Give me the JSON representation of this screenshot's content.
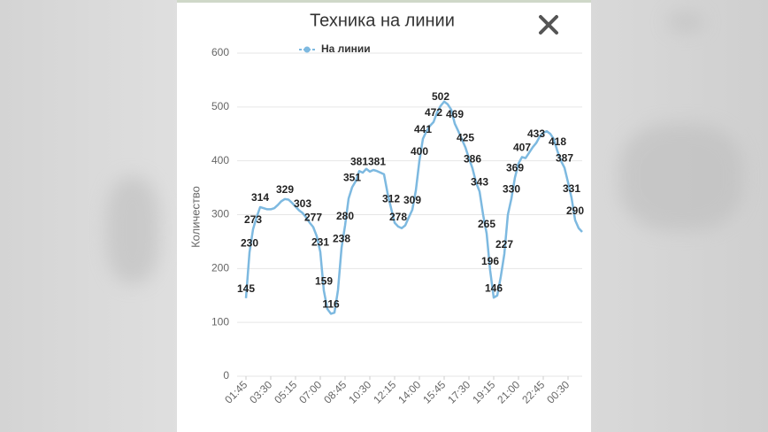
{
  "chart_data": {
    "type": "line",
    "title": "Техника на линии",
    "y_label": "Количество",
    "ylim": [
      0,
      600
    ],
    "yticks": [
      0,
      100,
      200,
      300,
      400,
      500,
      600
    ],
    "grid": true,
    "legend": "top",
    "categories": [
      "01:45",
      null,
      null,
      null,
      null,
      null,
      null,
      "03:30",
      null,
      null,
      null,
      null,
      null,
      null,
      "05:15",
      null,
      null,
      null,
      null,
      null,
      null,
      "07:00",
      null,
      null,
      null,
      null,
      null,
      null,
      "08:45",
      null,
      null,
      null,
      null,
      null,
      null,
      "10:30",
      null,
      null,
      null,
      null,
      null,
      null,
      "12:15",
      null,
      null,
      null,
      null,
      null,
      null,
      "14:00",
      null,
      null,
      null,
      null,
      null,
      null,
      "15:45",
      null,
      null,
      null,
      null,
      null,
      null,
      "17:30",
      null,
      null,
      null,
      null,
      null,
      null,
      "19:15",
      null,
      null,
      null,
      null,
      null,
      null,
      "21:00",
      null,
      null,
      null,
      null,
      null,
      null,
      "22:45",
      null,
      null,
      null,
      null,
      null,
      null,
      "00:30",
      null,
      null,
      null,
      null
    ],
    "series": [
      {
        "name": "На линии",
        "color": "#7db9e0",
        "values": [
          145,
          230,
          273,
          295,
          314,
          312,
          310,
          310,
          312,
          318,
          325,
          329,
          328,
          322,
          315,
          308,
          303,
          295,
          285,
          277,
          260,
          231,
          159,
          125,
          116,
          118,
          160,
          238,
          280,
          330,
          351,
          362,
          381,
          378,
          385,
          380,
          383,
          381,
          378,
          375,
          340,
          312,
          285,
          278,
          275,
          280,
          295,
          309,
          345,
          400,
          441,
          455,
          465,
          472,
          490,
          502,
          510,
          505,
          495,
          469,
          455,
          440,
          425,
          405,
          386,
          360,
          343,
          300,
          265,
          196,
          146,
          150,
          185,
          227,
          300,
          330,
          369,
          395,
          407,
          405,
          415,
          425,
          433,
          445,
          452,
          455,
          450,
          440,
          418,
          400,
          387,
          360,
          331,
          290,
          275,
          268
        ],
        "value_labels": [
          "145",
          "230",
          "273",
          null,
          "314",
          null,
          null,
          null,
          null,
          null,
          null,
          "329",
          null,
          null,
          null,
          null,
          "303",
          null,
          null,
          "277",
          null,
          "231",
          "159",
          null,
          "116",
          null,
          null,
          "238",
          "280",
          null,
          "351",
          null,
          "381",
          null,
          null,
          null,
          null,
          "381",
          null,
          null,
          null,
          "312",
          null,
          "278",
          null,
          null,
          null,
          "309",
          null,
          "400",
          "441",
          null,
          null,
          "472",
          null,
          "502",
          null,
          null,
          null,
          "469",
          null,
          null,
          "425",
          null,
          "386",
          null,
          "343",
          null,
          "265",
          "196",
          "146",
          null,
          null,
          "227",
          null,
          "330",
          "369",
          null,
          "407",
          null,
          null,
          null,
          "433",
          null,
          null,
          null,
          null,
          null,
          "418",
          null,
          "387",
          null,
          "331",
          "290",
          null,
          null
        ]
      }
    ]
  }
}
